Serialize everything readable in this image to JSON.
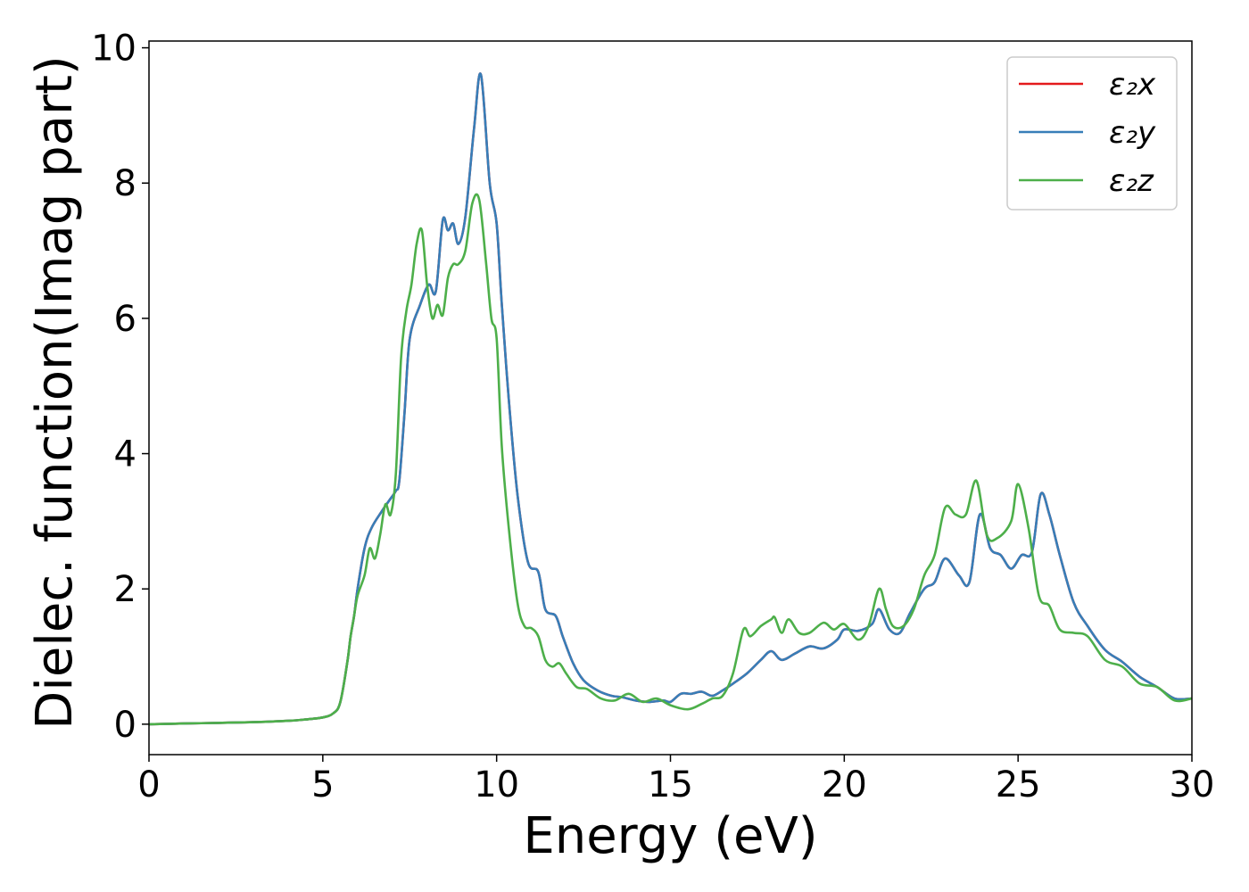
{
  "chart_data": {
    "type": "line",
    "title": "",
    "xlabel": "Energy (eV)",
    "ylabel": "Dielec. function(Imag part)",
    "xlim": [
      0,
      30
    ],
    "ylim": [
      -0.45,
      10.1
    ],
    "xticks": [
      0,
      5,
      10,
      15,
      20,
      25,
      30
    ],
    "yticks": [
      0,
      2,
      4,
      6,
      8,
      10
    ],
    "grid": false,
    "legend_position": "top-right",
    "series": [
      {
        "name": "ε₂x",
        "color": "#e41a1c",
        "x": [
          0,
          1,
          2,
          3,
          4,
          4.5,
          5,
          5.3,
          5.5,
          5.7,
          5.8,
          5.9,
          6.0,
          6.2,
          6.4,
          6.7,
          6.9,
          7.1,
          7.2,
          7.35,
          7.5,
          7.8,
          8.05,
          8.25,
          8.45,
          8.6,
          8.75,
          8.9,
          9.1,
          9.35,
          9.55,
          9.8,
          10.0,
          10.15,
          10.35,
          10.6,
          10.9,
          11.2,
          11.4,
          11.7,
          11.9,
          12.2,
          12.5,
          12.9,
          13.3,
          13.6,
          14.0,
          14.4,
          14.8,
          15.0,
          15.3,
          15.6,
          15.9,
          16.2,
          16.5,
          16.8,
          17.2,
          17.6,
          17.9,
          18.2,
          18.6,
          19.0,
          19.4,
          19.8,
          20.0,
          20.4,
          20.8,
          21.0,
          21.3,
          21.6,
          21.9,
          22.3,
          22.6,
          22.9,
          23.3,
          23.6,
          23.9,
          24.2,
          24.5,
          24.8,
          25.1,
          25.4,
          25.65,
          25.9,
          26.2,
          26.6,
          27.0,
          27.5,
          28.0,
          28.5,
          29.0,
          29.5,
          30
        ],
        "values": [
          0,
          0.01,
          0.02,
          0.03,
          0.05,
          0.07,
          0.1,
          0.16,
          0.32,
          0.9,
          1.3,
          1.6,
          2.0,
          2.6,
          2.9,
          3.15,
          3.3,
          3.45,
          3.6,
          4.6,
          5.7,
          6.2,
          6.5,
          6.4,
          7.45,
          7.3,
          7.4,
          7.1,
          7.5,
          8.8,
          9.6,
          8.0,
          7.4,
          6.2,
          4.8,
          3.4,
          2.4,
          2.25,
          1.7,
          1.6,
          1.3,
          0.9,
          0.65,
          0.5,
          0.42,
          0.4,
          0.35,
          0.33,
          0.35,
          0.33,
          0.45,
          0.45,
          0.48,
          0.42,
          0.5,
          0.6,
          0.75,
          0.95,
          1.08,
          0.95,
          1.05,
          1.15,
          1.12,
          1.25,
          1.4,
          1.38,
          1.48,
          1.7,
          1.4,
          1.35,
          1.65,
          2.0,
          2.1,
          2.45,
          2.2,
          2.1,
          3.1,
          2.6,
          2.5,
          2.3,
          2.5,
          2.55,
          3.4,
          3.1,
          2.5,
          1.8,
          1.45,
          1.1,
          0.92,
          0.7,
          0.55,
          0.38,
          0.38
        ]
      },
      {
        "name": "ε₂y",
        "color": "#377eb8",
        "x": [
          0,
          1,
          2,
          3,
          4,
          4.5,
          5,
          5.3,
          5.5,
          5.7,
          5.8,
          5.9,
          6.0,
          6.2,
          6.4,
          6.7,
          6.9,
          7.1,
          7.2,
          7.35,
          7.5,
          7.8,
          8.05,
          8.25,
          8.45,
          8.6,
          8.75,
          8.9,
          9.1,
          9.35,
          9.55,
          9.8,
          10.0,
          10.15,
          10.35,
          10.6,
          10.9,
          11.2,
          11.4,
          11.7,
          11.9,
          12.2,
          12.5,
          12.9,
          13.3,
          13.6,
          14.0,
          14.4,
          14.8,
          15.0,
          15.3,
          15.6,
          15.9,
          16.2,
          16.5,
          16.8,
          17.2,
          17.6,
          17.9,
          18.2,
          18.6,
          19.0,
          19.4,
          19.8,
          20.0,
          20.4,
          20.8,
          21.0,
          21.3,
          21.6,
          21.9,
          22.3,
          22.6,
          22.9,
          23.3,
          23.6,
          23.9,
          24.2,
          24.5,
          24.8,
          25.1,
          25.4,
          25.65,
          25.9,
          26.2,
          26.6,
          27.0,
          27.5,
          28.0,
          28.5,
          29.0,
          29.5,
          30
        ],
        "values": [
          0,
          0.01,
          0.02,
          0.03,
          0.05,
          0.07,
          0.1,
          0.16,
          0.32,
          0.9,
          1.3,
          1.6,
          2.0,
          2.6,
          2.9,
          3.15,
          3.3,
          3.45,
          3.6,
          4.6,
          5.7,
          6.2,
          6.5,
          6.4,
          7.45,
          7.3,
          7.4,
          7.1,
          7.5,
          8.8,
          9.6,
          8.0,
          7.4,
          6.2,
          4.8,
          3.4,
          2.4,
          2.25,
          1.7,
          1.6,
          1.3,
          0.9,
          0.65,
          0.5,
          0.42,
          0.4,
          0.35,
          0.33,
          0.35,
          0.33,
          0.45,
          0.45,
          0.48,
          0.42,
          0.5,
          0.6,
          0.75,
          0.95,
          1.08,
          0.95,
          1.05,
          1.15,
          1.12,
          1.25,
          1.4,
          1.38,
          1.48,
          1.7,
          1.4,
          1.35,
          1.65,
          2.0,
          2.1,
          2.45,
          2.2,
          2.1,
          3.1,
          2.6,
          2.5,
          2.3,
          2.5,
          2.55,
          3.4,
          3.1,
          2.5,
          1.8,
          1.45,
          1.1,
          0.92,
          0.7,
          0.55,
          0.38,
          0.38
        ]
      },
      {
        "name": "ε₂z",
        "color": "#4daf4a",
        "x": [
          0,
          1,
          2,
          3,
          4,
          4.5,
          5,
          5.3,
          5.5,
          5.7,
          5.8,
          5.9,
          6.0,
          6.2,
          6.35,
          6.5,
          6.65,
          6.8,
          6.95,
          7.1,
          7.25,
          7.4,
          7.55,
          7.7,
          7.85,
          8.0,
          8.15,
          8.3,
          8.45,
          8.6,
          8.75,
          8.9,
          9.1,
          9.3,
          9.5,
          9.7,
          9.85,
          10.0,
          10.15,
          10.35,
          10.6,
          10.8,
          11.0,
          11.2,
          11.4,
          11.6,
          11.8,
          12.0,
          12.3,
          12.6,
          13.0,
          13.4,
          13.8,
          14.2,
          14.6,
          15.0,
          15.5,
          15.9,
          16.2,
          16.5,
          16.8,
          17.1,
          17.3,
          17.6,
          17.9,
          18.0,
          18.2,
          18.4,
          18.7,
          19.0,
          19.4,
          19.7,
          20.0,
          20.4,
          20.7,
          21.0,
          21.2,
          21.4,
          21.7,
          22.0,
          22.3,
          22.6,
          22.9,
          23.2,
          23.5,
          23.8,
          24.1,
          24.4,
          24.8,
          25.0,
          25.3,
          25.6,
          25.9,
          26.2,
          26.6,
          27.0,
          27.5,
          28.0,
          28.5,
          29.0,
          29.5,
          30
        ],
        "values": [
          0,
          0.01,
          0.02,
          0.03,
          0.05,
          0.07,
          0.1,
          0.16,
          0.32,
          0.9,
          1.3,
          1.6,
          1.9,
          2.2,
          2.6,
          2.45,
          2.8,
          3.25,
          3.1,
          3.7,
          5.4,
          6.1,
          6.5,
          7.1,
          7.3,
          6.5,
          6.0,
          6.2,
          6.05,
          6.6,
          6.8,
          6.8,
          7.0,
          7.7,
          7.75,
          6.8,
          6.0,
          5.7,
          4.1,
          2.9,
          1.8,
          1.45,
          1.42,
          1.3,
          0.95,
          0.85,
          0.9,
          0.75,
          0.55,
          0.52,
          0.38,
          0.35,
          0.45,
          0.33,
          0.38,
          0.28,
          0.22,
          0.3,
          0.38,
          0.42,
          0.75,
          1.4,
          1.3,
          1.45,
          1.55,
          1.58,
          1.35,
          1.55,
          1.35,
          1.35,
          1.5,
          1.4,
          1.48,
          1.25,
          1.45,
          2.0,
          1.7,
          1.45,
          1.45,
          1.7,
          2.2,
          2.5,
          3.2,
          3.1,
          3.1,
          3.6,
          2.8,
          2.75,
          3.0,
          3.55,
          2.9,
          1.9,
          1.75,
          1.4,
          1.35,
          1.3,
          0.95,
          0.85,
          0.6,
          0.55,
          0.35,
          0.38
        ]
      }
    ]
  }
}
